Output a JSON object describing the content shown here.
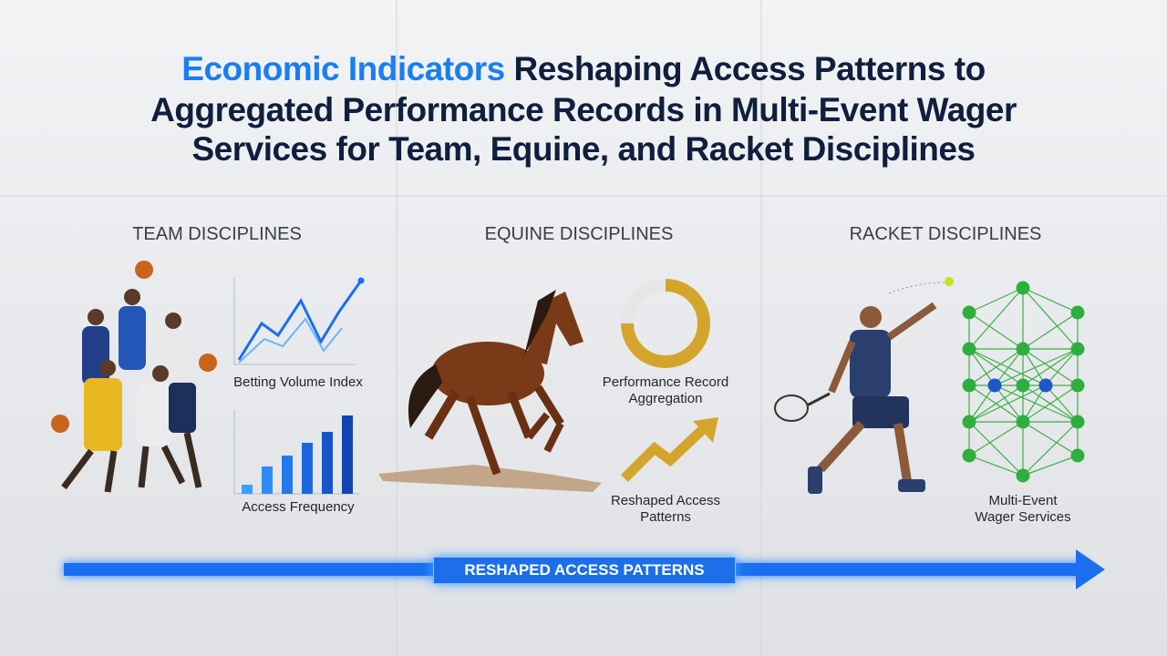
{
  "title": {
    "highlight": "Economic Indicators",
    "lines": [
      "Reshaping Access Patterns to",
      "Aggregated Performance Records in Multi-Event Wager",
      "Services for Team, Equine, and Racket Disciplines"
    ]
  },
  "panels": [
    {
      "heading": "TEAM DISCIPLINES",
      "labels": [
        "Betting Volume Index",
        "Access Frequency"
      ]
    },
    {
      "heading": "EQUINE DISCIPLINES",
      "labels": [
        "Performance Record Aggregation",
        "Reshaped Access Patterns"
      ]
    },
    {
      "heading": "RACKET DISCIPLINES",
      "labels": [
        "Multi-Event Wager Services"
      ]
    }
  ],
  "arrow": {
    "label": "RESHAPED ACCESS PATTERNS"
  }
}
